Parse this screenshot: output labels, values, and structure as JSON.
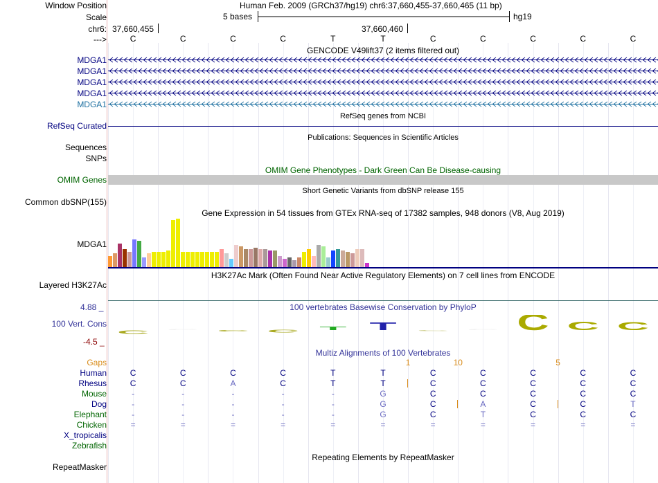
{
  "header": {
    "window_position_label": "Window Position",
    "window_position_value": "Human Feb. 2009 (GRCh37/hg19)   chr6:37,660,455-37,660,465 (11 bp)",
    "scale_label": "Scale",
    "scale_text": "5 bases",
    "scale_assembly": "hg19",
    "chrom_label": "chr6:",
    "coord_left": "37,660,455",
    "coord_mid": "37,660,460",
    "strand_label": "--->"
  },
  "bases": [
    "C",
    "C",
    "C",
    "C",
    "T",
    "T",
    "C",
    "C",
    "C",
    "C",
    "C"
  ],
  "gencode": {
    "title": "GENCODE V49lift37 (2 items filtered out)",
    "items": [
      "MDGA1",
      "MDGA1",
      "MDGA1",
      "MDGA1",
      "MDGA1"
    ]
  },
  "refseq": {
    "title": "RefSeq genes from NCBI",
    "label": "RefSeq Curated"
  },
  "publications": {
    "title": "Publications: Sequences in Scientific Articles",
    "label_sequences": "Sequences",
    "label_snps": "SNPs"
  },
  "omim": {
    "title": "OMIM Gene Phenotypes - Dark Green Can Be Disease-causing",
    "label": "OMIM Genes"
  },
  "dbsnp": {
    "title": "Short Genetic Variants from dbSNP release 155",
    "label": "Common dbSNP(155)"
  },
  "gtex": {
    "title": "Gene Expression in 54 tissues from GTEx RNA-seq of 17382 samples, 948 donors (V8, Aug 2019)",
    "label": "MDGA1",
    "values": [
      16,
      20,
      34,
      26,
      22,
      40,
      38,
      14,
      20,
      22,
      22,
      22,
      24,
      68,
      70,
      22,
      22,
      22,
      22,
      22,
      22,
      22,
      22,
      26,
      20,
      12,
      32,
      30,
      26,
      26,
      28,
      26,
      26,
      24,
      24,
      16,
      12,
      14,
      10,
      14,
      22,
      26,
      16,
      32,
      30,
      14,
      24,
      26,
      24,
      22,
      20,
      26,
      26,
      6
    ],
    "colors": [
      "#ff9933",
      "#dd9966",
      "#aa3366",
      "#993300",
      "#cc9999",
      "#7777ff",
      "#44aa44",
      "#9999ff",
      "#ffcc99",
      "#eeee00",
      "#eeee00",
      "#eeee00",
      "#eeee00",
      "#eeee00",
      "#eeee00",
      "#eeee00",
      "#eeee00",
      "#eeee00",
      "#eeee00",
      "#eeee00",
      "#eeee00",
      "#eeee00",
      "#eeee00",
      "#ff9999",
      "#cccccc",
      "#66ccff",
      "#eecccc",
      "#cc9966",
      "#aa8866",
      "#cc9999",
      "#997766",
      "#ddaaaa",
      "#aa9999",
      "#aa33aa",
      "#999966",
      "#cc99cc",
      "#cc66cc",
      "#666666",
      "#aa99aa",
      "#cc8866",
      "#eeee00",
      "#ffcc00",
      "#ffbbbb",
      "#aaaaaa",
      "#aaee99",
      "#99cccc",
      "#1144ff",
      "#339999",
      "#ccaa99",
      "#bb9966",
      "#cc9999",
      "#eeccbb",
      "#ddbbbb",
      "#cc33cc"
    ]
  },
  "h3k27ac": {
    "title": "H3K27Ac Mark (Often Found Near Active Regulatory Elements) on 7 cell lines from ENCODE",
    "label": "Layered H3K27Ac"
  },
  "conservation": {
    "title": "100 vertebrates Basewise Conservation by PhyloP",
    "label": "100 Vert. Cons",
    "max_label": "4.88 _",
    "min_label": "-4.5 _",
    "values": [
      -0.6,
      0,
      -0.2,
      -0.4,
      0.6,
      1.2,
      -0.1,
      0,
      2.6,
      1.4,
      1.3
    ],
    "colors": [
      "#aaaa22",
      "#eeeeee",
      "#aaaa22",
      "#aaaa22",
      "#22aa22",
      "#2222aa",
      "#cccc88",
      "#eeeeee",
      "#aaaa00",
      "#aaaa00",
      "#aaaa00"
    ]
  },
  "multiz": {
    "title": "Multiz Alignments of 100 Vertebrates",
    "gaps_label": "Gaps",
    "gaps": [
      {
        "after_base": 6,
        "text": "1"
      },
      {
        "after_base": 7,
        "text": "10"
      },
      {
        "after_base": 9,
        "text": "5"
      }
    ],
    "species": [
      {
        "name": "Human",
        "color": "#000080",
        "bases": [
          "C",
          "C",
          "C",
          "C",
          "T",
          "T",
          "C",
          "C",
          "C",
          "C",
          "C"
        ],
        "gap_marks": []
      },
      {
        "name": "Rhesus",
        "color": "#000080",
        "bases": [
          "C",
          "C",
          "A",
          "C",
          "T",
          "T",
          "C",
          "C",
          "C",
          "C",
          "C"
        ],
        "gap_marks": [
          6
        ]
      },
      {
        "name": "Mouse",
        "color": "#006400",
        "bases": [
          "-",
          "-",
          "-",
          "-",
          "-",
          "G",
          "C",
          "C",
          "C",
          "C",
          "C"
        ],
        "gap_marks": []
      },
      {
        "name": "Dog",
        "color": "#000080",
        "bases": [
          "-",
          "-",
          "-",
          "-",
          "-",
          "G",
          "C",
          "A",
          "C",
          "C",
          "T"
        ],
        "gap_marks": [
          7,
          9
        ]
      },
      {
        "name": "Elephant",
        "color": "#006400",
        "bases": [
          "-",
          "-",
          "-",
          "-",
          "-",
          "G",
          "C",
          "T",
          "C",
          "C",
          "C"
        ],
        "gap_marks": []
      },
      {
        "name": "Chicken",
        "color": "#006400",
        "bases": [
          "=",
          "=",
          "=",
          "=",
          "=",
          "=",
          "=",
          "=",
          "=",
          "=",
          "="
        ],
        "gap_marks": []
      },
      {
        "name": "X_tropicalis",
        "color": "#000080",
        "bases": [],
        "gap_marks": []
      },
      {
        "name": "Zebrafish",
        "color": "#006400",
        "bases": [],
        "gap_marks": []
      }
    ]
  },
  "repeatmasker": {
    "title": "Repeating Elements by RepeatMasker",
    "label": "RepeatMasker"
  }
}
